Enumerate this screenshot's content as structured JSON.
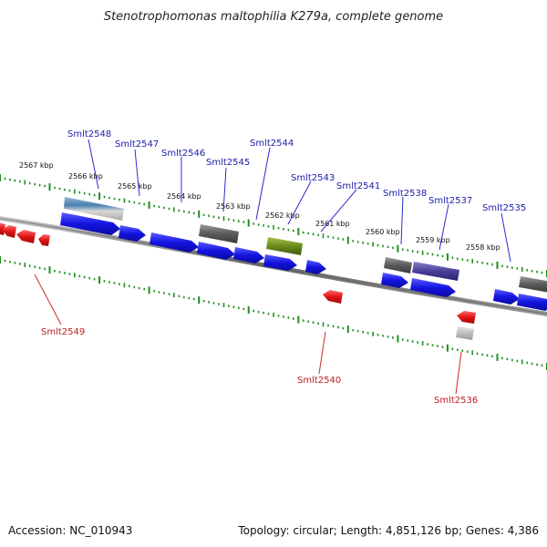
{
  "title": "Stenotrophomonas maltophilia K279a, complete genome",
  "footer": {
    "accession": "Accession: NC_010943",
    "summary": "Topology: circular; Length: 4,851,126 bp; Genes: 4,386"
  },
  "colors": {
    "forward_gene": "#1a1ae6",
    "reverse_gene": "#e01414",
    "grey_feature": "#6b6b6b",
    "olive_feature": "#6a8a1a",
    "purple_feature": "#4a3f9a",
    "steel_feature": "#4a7fb0",
    "backbone": "#7a7a7a",
    "tick": "#1e8f1e",
    "label_forward": "#1c1ca8",
    "label_reverse": "#c11c1c"
  },
  "kbp_labels": [
    "2567 kbp",
    "2566 kbp",
    "2565 kbp",
    "2564 kbp",
    "2563 kbp",
    "2562 kbp",
    "2561 kbp",
    "2560 kbp",
    "2559 kbp",
    "2558 kbp"
  ],
  "forward_labels": [
    "Smlt2548",
    "Smlt2547",
    "Smlt2546",
    "Smlt2545",
    "Smlt2544",
    "Smlt2543",
    "Smlt2541",
    "Smlt2538",
    "Smlt2537",
    "Smlt2535"
  ],
  "reverse_labels": [
    "Smlt2549",
    "Smlt2540",
    "Smlt2536"
  ]
}
